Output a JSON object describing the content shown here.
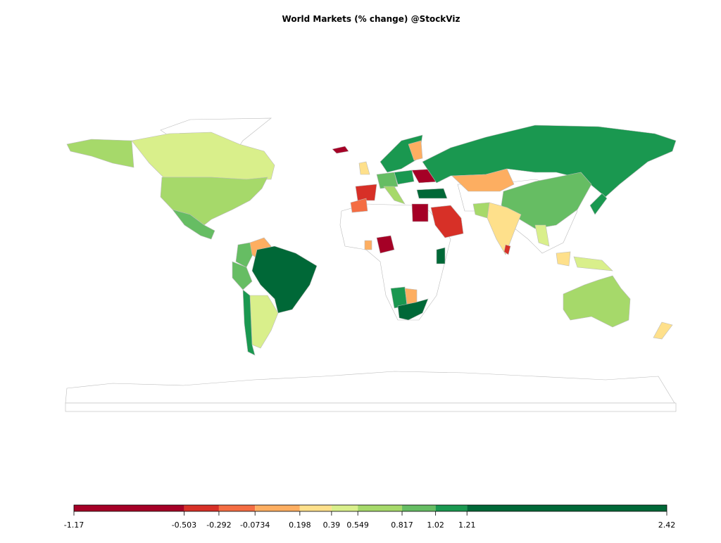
{
  "title": "World Markets (% change) @StockViz",
  "legend": {
    "breaks": [
      -1.17,
      -0.503,
      -0.292,
      -0.0734,
      0.198,
      0.39,
      0.549,
      0.817,
      1.02,
      1.21,
      2.42
    ],
    "colors": [
      "#a50026",
      "#d73027",
      "#f46d43",
      "#fdae61",
      "#fee08b",
      "#d9ef8b",
      "#a6d96a",
      "#66bd63",
      "#1a9850",
      "#006837"
    ]
  }
}
